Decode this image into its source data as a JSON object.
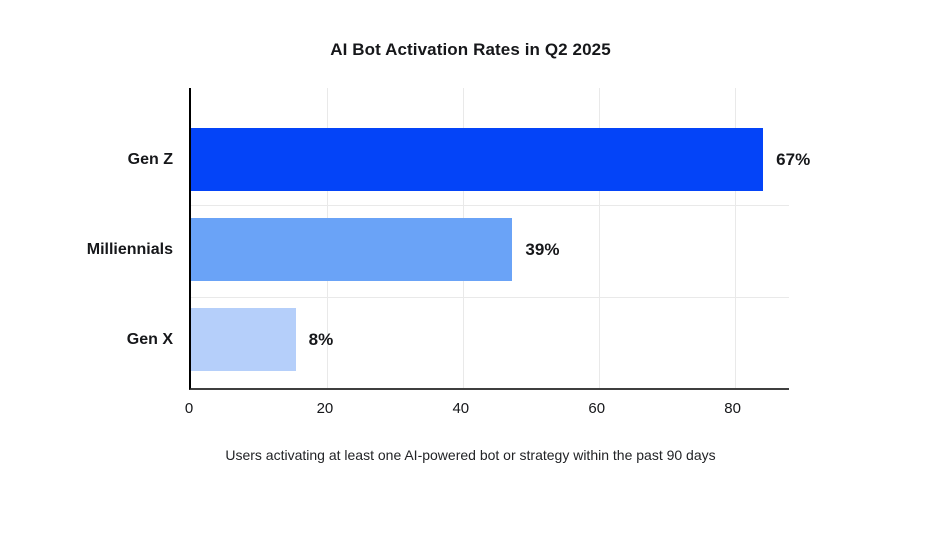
{
  "page": {
    "background_color": "#ffffff"
  },
  "chart_data": {
    "type": "bar",
    "orientation": "horizontal",
    "title": "AI Bot Activation Rates in Q2 2025",
    "caption": "Users activating at least one AI-powered bot or strategy within the past 90 days",
    "categories": [
      "Gen Z",
      "Milliennials",
      "Gen X"
    ],
    "values": [
      67,
      39,
      8
    ],
    "value_labels": [
      "67%",
      "39%",
      "8%"
    ],
    "bar_axis_extents": [
      84.2,
      47.3,
      15.4
    ],
    "bar_colors": [
      "#0444f8",
      "#6aa3f7",
      "#b5cffa"
    ],
    "x_ticks": [
      0,
      20,
      40,
      60,
      80
    ],
    "xlim": [
      0,
      88
    ],
    "grid": {
      "vertical_at_ticks": true,
      "row_separators": true,
      "color": "#e9e9e9"
    },
    "axis_colors": {
      "y_axis_line": "#000000",
      "x_axis_line": "#3f3f3f"
    },
    "text_color": "#16171a",
    "legend": "none"
  }
}
